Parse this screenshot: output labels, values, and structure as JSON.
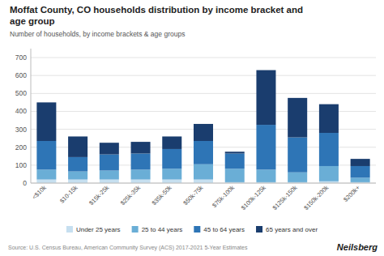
{
  "chart_data": {
    "type": "bar",
    "stacked": true,
    "title": "Moffat County, CO households distribution by income bracket and\nage group",
    "subtitle": "Number of households, by income brackets & age groups",
    "source": "Source: U.S. Census Bureau, American Community Survey (ACS) 2017-2021 5-Year Estimates",
    "annotations": [
      "Neilsberg"
    ],
    "categories": [
      "<$10k",
      "$10-15k",
      "$15k-25k",
      "$25k-35k",
      "$35k-50k",
      "$50k-75k",
      "$75k-100k",
      "$100k-125k",
      "$125k-150k",
      "$150k-200k",
      "$200k+"
    ],
    "series": [
      {
        "name": "Under 25 years",
        "color": "#c6dff0",
        "values": [
          20,
          20,
          20,
          20,
          20,
          20,
          5,
          5,
          5,
          10,
          5
        ]
      },
      {
        "name": "25 to 44 years",
        "color": "#6aaed6",
        "values": [
          55,
          45,
          50,
          55,
          60,
          85,
          75,
          70,
          55,
          85,
          25
        ]
      },
      {
        "name": "45 to 64 years",
        "color": "#2e75b6",
        "values": [
          160,
          80,
          90,
          90,
          110,
          130,
          85,
          250,
          195,
          185,
          65
        ]
      },
      {
        "name": "65 years and over",
        "color": "#1a3d6e",
        "values": [
          215,
          115,
          65,
          65,
          70,
          95,
          10,
          305,
          220,
          160,
          40
        ]
      }
    ],
    "ylim": [
      0,
      750
    ],
    "yticks": [
      0,
      100,
      200,
      300,
      400,
      500,
      600,
      700
    ],
    "grid": true,
    "legend": "bottom"
  }
}
